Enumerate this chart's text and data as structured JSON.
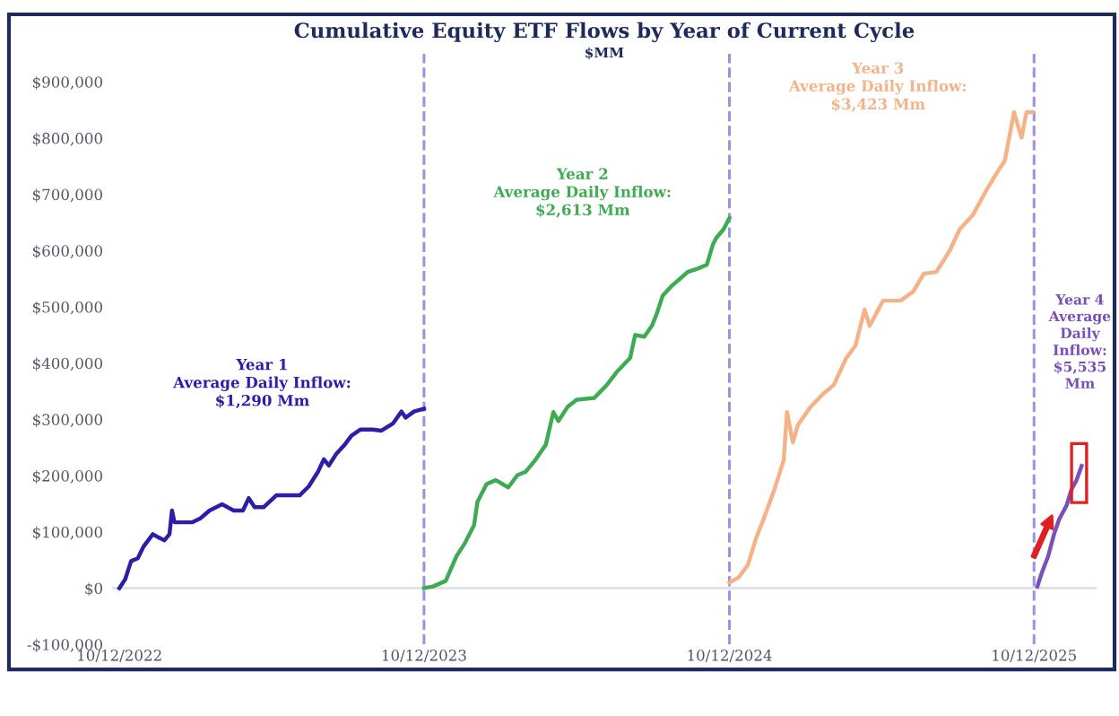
{
  "chart_data": {
    "type": "line",
    "title": "Cumulative Equity ETF Flows by Year of Current Cycle",
    "subtitle": "$MM",
    "series": [
      {
        "name": "Year 1\nAverage Daily Inflow:\n$1,290 Mm",
        "color": "#2a1fa6",
        "x": [
          "2022-10-12",
          "2022-10-19",
          "2022-10-26",
          "2022-11-03",
          "2022-11-10",
          "2022-11-21",
          "2022-11-28",
          "2022-12-05",
          "2022-12-11",
          "2022-12-14",
          "2022-12-17",
          "2022-12-27",
          "2023-01-07",
          "2023-01-17",
          "2023-01-28",
          "2023-02-12",
          "2023-02-26",
          "2023-03-09",
          "2023-03-16",
          "2023-03-23",
          "2023-04-03",
          "2023-04-18",
          "2023-05-02",
          "2023-05-16",
          "2023-05-27",
          "2023-06-07",
          "2023-06-14",
          "2023-06-20",
          "2023-06-29",
          "2023-07-09",
          "2023-07-17",
          "2023-07-28",
          "2023-08-11",
          "2023-08-22",
          "2023-09-05",
          "2023-09-15",
          "2023-09-20",
          "2023-09-30",
          "2023-10-12"
        ],
        "values": [
          0,
          16000,
          48000,
          53000,
          74000,
          96000,
          90000,
          85000,
          96000,
          138000,
          117000,
          117000,
          117000,
          124000,
          138000,
          149000,
          138000,
          138000,
          160000,
          144000,
          144000,
          165000,
          165000,
          165000,
          181000,
          207000,
          229000,
          218000,
          239000,
          255000,
          271000,
          282000,
          282000,
          280000,
          293000,
          314000,
          303000,
          314000,
          319000
        ]
      },
      {
        "name": "Year 2\nAverage Daily Inflow:\n$2,613 Mm",
        "color": "#3dab52",
        "x": [
          "2023-10-12",
          "2023-10-23",
          "2023-11-07",
          "2023-11-20",
          "2023-11-30",
          "2023-12-11",
          "2023-12-15",
          "2023-12-26",
          "2024-01-06",
          "2024-01-21",
          "2024-02-01",
          "2024-02-11",
          "2024-02-22",
          "2024-03-06",
          "2024-03-15",
          "2024-03-21",
          "2024-04-01",
          "2024-04-12",
          "2024-05-03",
          "2024-05-18",
          "2024-05-31",
          "2024-06-15",
          "2024-06-21",
          "2024-07-02",
          "2024-07-11",
          "2024-07-17",
          "2024-07-24",
          "2024-08-03",
          "2024-08-23",
          "2024-09-04",
          "2024-09-15",
          "2024-09-22",
          "2024-09-26",
          "2024-10-05",
          "2024-10-12"
        ],
        "values": [
          0,
          3000,
          13000,
          57000,
          80000,
          112000,
          153000,
          185000,
          192000,
          179000,
          201000,
          207000,
          227000,
          255000,
          313000,
          297000,
          322000,
          335000,
          338000,
          361000,
          386000,
          409000,
          450000,
          447000,
          466000,
          488000,
          520000,
          536000,
          562000,
          568000,
          575000,
          610000,
          622000,
          638000,
          658000
        ]
      },
      {
        "name": "Year 3\nAverage Daily Inflow:\n$3,423 Mm",
        "color": "#f4b286",
        "x": [
          "2024-10-12",
          "2024-10-23",
          "2024-11-03",
          "2024-11-13",
          "2024-11-24",
          "2024-12-05",
          "2024-12-16",
          "2024-12-20",
          "2024-12-27",
          "2025-01-02",
          "2025-01-17",
          "2025-02-01",
          "2025-02-14",
          "2025-03-01",
          "2025-03-12",
          "2025-03-23",
          "2025-03-29",
          "2025-04-14",
          "2025-05-05",
          "2025-05-20",
          "2025-06-02",
          "2025-06-17",
          "2025-07-03",
          "2025-07-15",
          "2025-07-31",
          "2025-08-15",
          "2025-08-28",
          "2025-09-07",
          "2025-09-18",
          "2025-09-27",
          "2025-10-03",
          "2025-10-10"
        ],
        "values": [
          10000,
          19000,
          41000,
          89000,
          131000,
          176000,
          227000,
          313000,
          259000,
          290000,
          322000,
          345000,
          361000,
          409000,
          431000,
          495000,
          466000,
          511000,
          511000,
          527000,
          559000,
          562000,
          600000,
          638000,
          664000,
          705000,
          737000,
          760000,
          846000,
          801000,
          846000,
          846000
        ]
      },
      {
        "name": "Year 4\nAverage\nDaily\nInflow:\n$5,535\nMm",
        "color": "#7b4fb8",
        "x": [
          "2025-10-16",
          "2025-10-21",
          "2025-10-29",
          "2025-11-05",
          "2025-11-11",
          "2025-11-20",
          "2025-11-26",
          "2025-12-02",
          "2025-12-08"
        ],
        "values": [
          3000,
          26000,
          57000,
          96000,
          122000,
          147000,
          176000,
          192000,
          217000
        ]
      }
    ],
    "ref_lines": [
      {
        "axis": "x",
        "value": "2023-10-12",
        "color": "#9a94e0",
        "line_style": "dashed"
      },
      {
        "axis": "x",
        "value": "2024-10-12",
        "color": "#9a94e0",
        "line_style": "dashed"
      },
      {
        "axis": "x",
        "value": "2025-10-12",
        "color": "#9a94e0",
        "line_style": "dashed"
      },
      {
        "axis": "y",
        "value": 0,
        "color": "#e2e2ea",
        "line_style": "solid"
      }
    ],
    "xlim": [
      "2022-10-03",
      "2025-12-26"
    ],
    "xticks": [
      {
        "value": "2022-10-12",
        "label": "10/12/2022"
      },
      {
        "value": "2023-10-12",
        "label": "10/12/2023"
      },
      {
        "value": "2024-10-12",
        "label": "10/12/2024"
      },
      {
        "value": "2025-10-12",
        "label": "10/12/2025"
      }
    ],
    "ylim": [
      -100000,
      950000
    ],
    "yticks": [
      {
        "value": -100000,
        "label": "-$100,000"
      },
      {
        "value": 0,
        "label": "$0"
      },
      {
        "value": 100000,
        "label": "$100,000"
      },
      {
        "value": 200000,
        "label": "$200,000"
      },
      {
        "value": 300000,
        "label": "$300,000"
      },
      {
        "value": 400000,
        "label": "$400,000"
      },
      {
        "value": 500000,
        "label": "$500,000"
      },
      {
        "value": 600000,
        "label": "$600,000"
      },
      {
        "value": 700000,
        "label": "$700,000"
      },
      {
        "value": 800000,
        "label": "$800,000"
      },
      {
        "value": 900000,
        "label": "$900,000"
      }
    ],
    "grid": false,
    "legend": false,
    "marker": "none",
    "line_style": "solid"
  }
}
